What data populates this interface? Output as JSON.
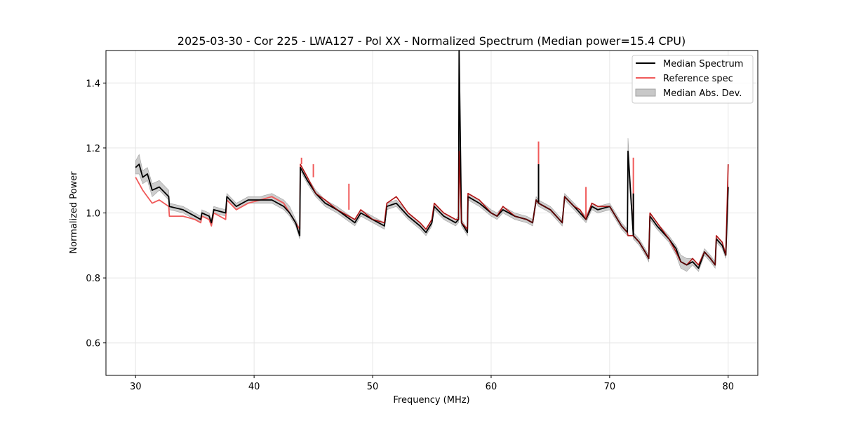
{
  "chart_data": {
    "type": "line",
    "title": "2025-03-30 - Cor 225 - LWA127 - Pol XX - Normalized Spectrum (Median power=15.4 CPU)",
    "xlabel": "Frequency (MHz)",
    "ylabel": "Normalized Power",
    "xlim": [
      27.5,
      82.5
    ],
    "ylim": [
      0.5,
      1.5
    ],
    "xticks": [
      30,
      40,
      50,
      60,
      70,
      80
    ],
    "yticks": [
      0.6,
      0.8,
      1.0,
      1.2,
      1.4
    ],
    "xtick_labels": [
      "30",
      "40",
      "50",
      "60",
      "70",
      "80"
    ],
    "ytick_labels": [
      "0.6",
      "0.8",
      "1.0",
      "1.2",
      "1.4"
    ],
    "grid": true,
    "legend_position": "top-right",
    "legend": [
      "Median Spectrum",
      "Reference spec",
      "Median Abs. Dev."
    ],
    "colors": {
      "median": "#000000",
      "reference": "#f05a5a",
      "mad_fill": "#c8c8c8",
      "mad_edge": "#a0a0a0",
      "overlap": "#8b0000",
      "grid": "#e6e6e6"
    },
    "series": [
      {
        "name": "Median Spectrum",
        "x": [
          30.0,
          30.3,
          30.6,
          31.0,
          31.4,
          32.0,
          32.8,
          32.85,
          34.0,
          35.0,
          35.5,
          35.6,
          36.2,
          36.4,
          36.6,
          37.6,
          37.7,
          38.5,
          39.5,
          40.5,
          41.5,
          42.5,
          43.0,
          43.5,
          43.85,
          43.9,
          44.5,
          45.2,
          46.0,
          47.0,
          48.5,
          49.0,
          50.0,
          51.0,
          51.2,
          52.0,
          53.0,
          54.0,
          54.5,
          55.0,
          55.2,
          56.0,
          57.0,
          57.25,
          57.3,
          57.5,
          58.0,
          58.05,
          59.0,
          60.0,
          60.5,
          61.0,
          62.0,
          63.0,
          63.5,
          63.8,
          64.0,
          65.0,
          66.0,
          66.2,
          67.0,
          67.5,
          68.0,
          68.5,
          69.0,
          70.0,
          71.0,
          71.5,
          71.55,
          72.0,
          72.5,
          73.0,
          73.3,
          73.4,
          74.0,
          75.0,
          75.6,
          76.0,
          76.5,
          77.0,
          77.5,
          78.0,
          78.5,
          78.9,
          79.0,
          79.5,
          79.8,
          80.0
        ],
        "y": [
          1.14,
          1.15,
          1.11,
          1.12,
          1.07,
          1.08,
          1.05,
          1.02,
          1.01,
          0.99,
          0.98,
          1.0,
          0.99,
          0.97,
          1.01,
          1.0,
          1.05,
          1.02,
          1.04,
          1.04,
          1.04,
          1.02,
          1.0,
          0.97,
          0.93,
          1.14,
          1.1,
          1.06,
          1.03,
          1.01,
          0.97,
          1.0,
          0.98,
          0.96,
          1.02,
          1.03,
          0.99,
          0.96,
          0.94,
          0.97,
          1.02,
          0.99,
          0.97,
          0.98,
          1.5,
          0.97,
          0.94,
          1.05,
          1.03,
          1.0,
          0.99,
          1.01,
          0.99,
          0.98,
          0.97,
          1.04,
          1.03,
          1.01,
          0.97,
          1.05,
          1.02,
          1.0,
          0.98,
          1.02,
          1.01,
          1.02,
          0.96,
          0.94,
          1.19,
          0.93,
          0.91,
          0.88,
          0.86,
          0.99,
          0.96,
          0.92,
          0.89,
          0.85,
          0.84,
          0.85,
          0.83,
          0.88,
          0.86,
          0.84,
          0.92,
          0.9,
          0.87,
          1.08
        ]
      },
      {
        "name": "Reference spec",
        "x": [
          30.0,
          30.3,
          30.6,
          31.0,
          31.4,
          32.0,
          32.8,
          32.85,
          34.0,
          35.0,
          35.5,
          35.6,
          36.2,
          36.4,
          36.6,
          37.6,
          37.7,
          38.5,
          39.5,
          40.5,
          41.5,
          42.5,
          43.0,
          43.5,
          43.85,
          43.9,
          44.5,
          45.2,
          46.0,
          47.0,
          48.5,
          49.0,
          50.0,
          51.0,
          51.2,
          52.0,
          53.0,
          54.0,
          54.5,
          55.0,
          55.2,
          56.0,
          57.0,
          57.25,
          57.3,
          57.5,
          58.0,
          58.05,
          59.0,
          60.0,
          60.5,
          61.0,
          62.0,
          63.0,
          63.5,
          63.8,
          64.0,
          65.0,
          66.0,
          66.2,
          67.0,
          67.5,
          68.0,
          68.5,
          69.0,
          70.0,
          71.0,
          71.5,
          71.55,
          72.0,
          72.5,
          73.0,
          73.3,
          73.4,
          74.0,
          75.0,
          75.6,
          76.0,
          76.5,
          77.0,
          77.5,
          78.0,
          78.5,
          78.9,
          79.0,
          79.5,
          79.8,
          80.0
        ],
        "y": [
          1.11,
          1.09,
          1.07,
          1.05,
          1.03,
          1.04,
          1.02,
          0.99,
          0.99,
          0.98,
          0.97,
          0.99,
          0.98,
          0.96,
          1.0,
          0.98,
          1.04,
          1.01,
          1.03,
          1.04,
          1.05,
          1.03,
          1.0,
          0.97,
          0.95,
          1.15,
          1.11,
          1.06,
          1.04,
          1.01,
          0.98,
          1.01,
          0.98,
          0.97,
          1.03,
          1.05,
          1.0,
          0.97,
          0.95,
          0.98,
          1.03,
          1.0,
          0.98,
          0.98,
          1.19,
          0.97,
          0.95,
          1.06,
          1.04,
          1.0,
          0.99,
          1.02,
          0.99,
          0.98,
          0.97,
          1.04,
          1.03,
          1.01,
          0.97,
          1.05,
          1.02,
          1.01,
          0.98,
          1.03,
          1.02,
          1.02,
          0.96,
          0.94,
          0.93,
          0.93,
          0.91,
          0.88,
          0.86,
          1.0,
          0.97,
          0.92,
          0.88,
          0.85,
          0.84,
          0.86,
          0.84,
          0.88,
          0.86,
          0.84,
          0.93,
          0.91,
          0.87,
          1.15
        ]
      },
      {
        "name": "Median Abs. Dev.",
        "x": [
          30.0,
          30.3,
          30.6,
          31.0,
          31.4,
          32.0,
          32.8,
          32.85,
          34.0,
          35.0,
          35.5,
          35.6,
          36.2,
          36.4,
          36.6,
          37.6,
          37.7,
          38.5,
          39.5,
          40.5,
          41.5,
          42.5,
          43.0,
          43.5,
          43.85,
          43.9,
          44.5,
          45.2,
          46.0,
          47.0,
          48.5,
          49.0,
          50.0,
          51.0,
          51.2,
          52.0,
          53.0,
          54.0,
          54.5,
          55.0,
          55.2,
          56.0,
          57.0,
          57.25,
          57.3,
          57.5,
          58.0,
          58.05,
          59.0,
          60.0,
          60.5,
          61.0,
          62.0,
          63.0,
          63.5,
          63.8,
          64.0,
          65.0,
          66.0,
          66.2,
          67.0,
          67.5,
          68.0,
          68.5,
          69.0,
          70.0,
          71.0,
          71.5,
          71.55,
          72.0,
          72.5,
          73.0,
          73.3,
          73.4,
          74.0,
          75.0,
          75.6,
          76.0,
          76.5,
          77.0,
          77.5,
          78.0,
          78.5,
          78.9,
          79.0,
          79.5,
          79.8,
          80.0
        ],
        "lower": [
          1.12,
          1.12,
          1.09,
          1.1,
          1.05,
          1.07,
          1.04,
          1.01,
          1.0,
          0.98,
          0.97,
          0.99,
          0.98,
          0.96,
          1.0,
          0.99,
          1.04,
          1.01,
          1.03,
          1.03,
          1.03,
          1.01,
          0.99,
          0.96,
          0.92,
          1.13,
          1.09,
          1.05,
          1.02,
          1.0,
          0.96,
          0.99,
          0.97,
          0.95,
          1.01,
          1.02,
          0.98,
          0.95,
          0.93,
          0.96,
          1.01,
          0.98,
          0.96,
          0.97,
          1.19,
          0.96,
          0.93,
          1.04,
          1.02,
          0.99,
          0.98,
          1.0,
          0.98,
          0.97,
          0.96,
          1.03,
          1.02,
          1.0,
          0.96,
          1.04,
          1.01,
          0.99,
          0.97,
          1.01,
          1.0,
          1.01,
          0.95,
          0.93,
          1.15,
          0.92,
          0.9,
          0.87,
          0.85,
          0.98,
          0.95,
          0.91,
          0.87,
          0.83,
          0.82,
          0.84,
          0.82,
          0.87,
          0.85,
          0.83,
          0.91,
          0.89,
          0.86,
          1.06
        ],
        "upper": [
          1.16,
          1.18,
          1.13,
          1.14,
          1.09,
          1.1,
          1.07,
          1.03,
          1.02,
          1.0,
          0.99,
          1.01,
          1.0,
          0.98,
          1.02,
          1.01,
          1.06,
          1.03,
          1.05,
          1.05,
          1.06,
          1.04,
          1.02,
          0.98,
          0.95,
          1.15,
          1.11,
          1.07,
          1.04,
          1.02,
          0.98,
          1.01,
          0.99,
          0.97,
          1.03,
          1.04,
          1.0,
          0.97,
          0.95,
          0.98,
          1.03,
          1.0,
          0.98,
          0.99,
          1.5,
          0.98,
          0.95,
          1.06,
          1.04,
          1.01,
          1.0,
          1.02,
          1.0,
          0.99,
          0.98,
          1.05,
          1.04,
          1.02,
          0.98,
          1.06,
          1.03,
          1.01,
          0.99,
          1.03,
          1.02,
          1.03,
          0.97,
          0.95,
          1.23,
          0.94,
          0.92,
          0.89,
          0.87,
          1.0,
          0.97,
          0.93,
          0.9,
          0.87,
          0.86,
          0.86,
          0.84,
          0.89,
          0.87,
          0.85,
          0.93,
          0.91,
          0.88,
          1.1
        ]
      }
    ],
    "spikes": [
      {
        "series": "Reference spec",
        "x": 44.0,
        "y": 1.17
      },
      {
        "series": "Reference spec",
        "x": 45.0,
        "y": 1.15
      },
      {
        "series": "Reference spec",
        "x": 48.0,
        "y": 1.09
      },
      {
        "series": "Reference spec",
        "x": 64.0,
        "y": 1.22
      },
      {
        "series": "Median Spectrum",
        "x": 64.0,
        "y": 1.15
      },
      {
        "series": "Reference spec",
        "x": 68.0,
        "y": 1.08
      },
      {
        "series": "Reference spec",
        "x": 72.0,
        "y": 1.17
      },
      {
        "series": "Median Spectrum",
        "x": 72.0,
        "y": 1.06
      }
    ]
  }
}
